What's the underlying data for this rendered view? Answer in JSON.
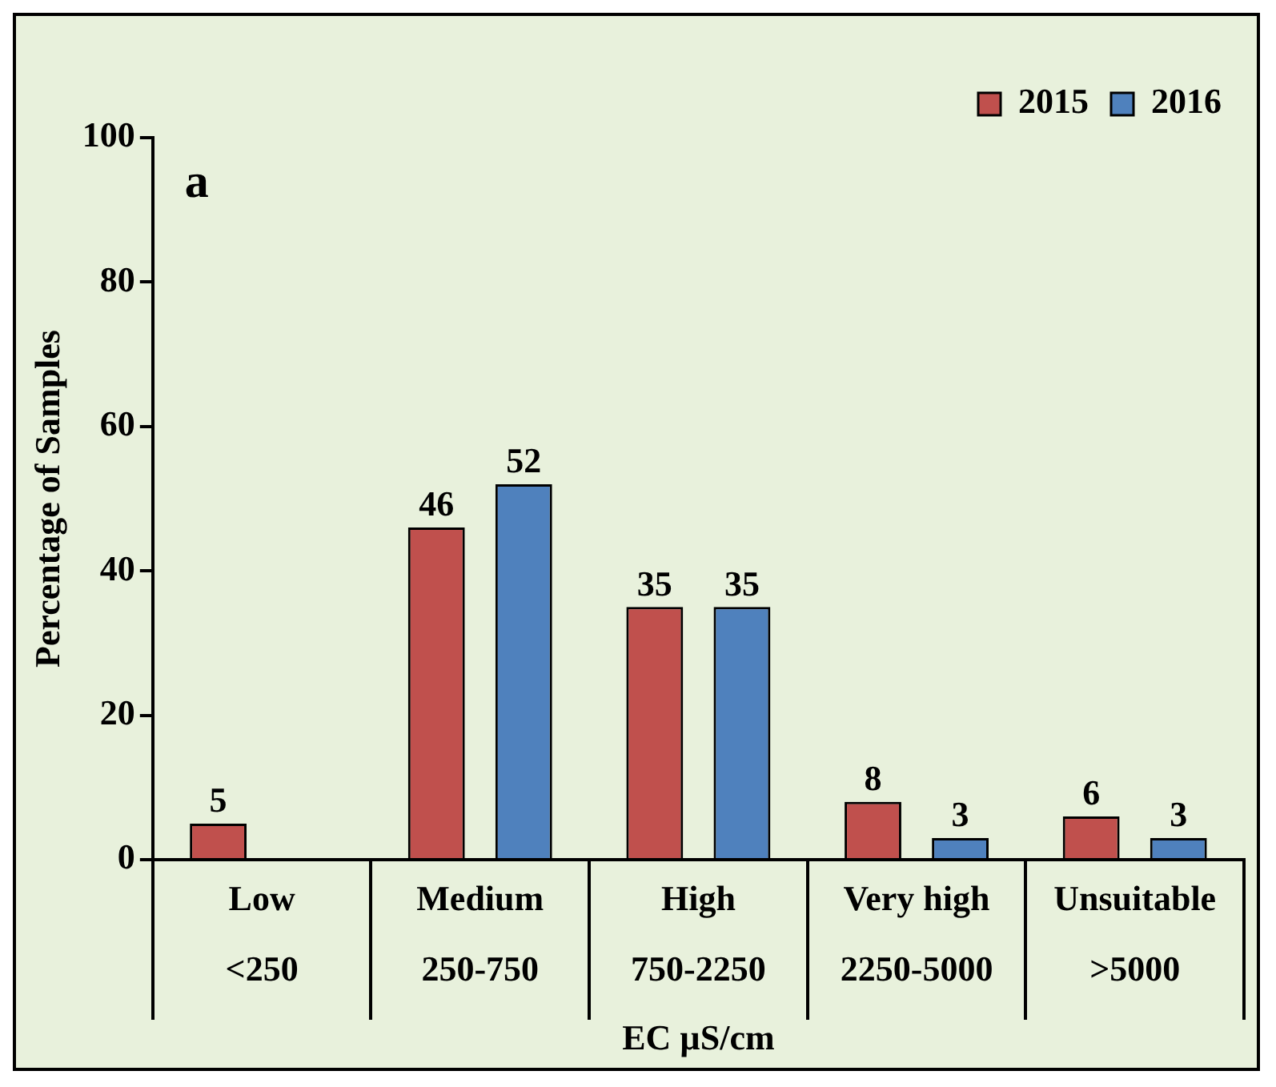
{
  "chart_data": {
    "type": "bar",
    "xlabel": "EC µS/cm",
    "ylabel": "Percentage of Samples",
    "categories": [
      "Low\n<250",
      "Medium\n250-750",
      "High\n750-2250",
      "Very high\n2250-5000",
      "Unsuitable\n>5000"
    ],
    "series": [
      {
        "name": "2015",
        "color": "#c0504d",
        "values": [
          5,
          46,
          35,
          8,
          6
        ]
      },
      {
        "name": "2016",
        "color": "#4f81bd",
        "values": [
          null,
          52,
          35,
          3,
          3
        ]
      }
    ],
    "ylim": [
      0,
      100
    ],
    "yticks": [
      0,
      20,
      40,
      60,
      80,
      100
    ],
    "grid": false,
    "legend": "top right",
    "data_labels": true,
    "annotations": [
      "a"
    ]
  }
}
